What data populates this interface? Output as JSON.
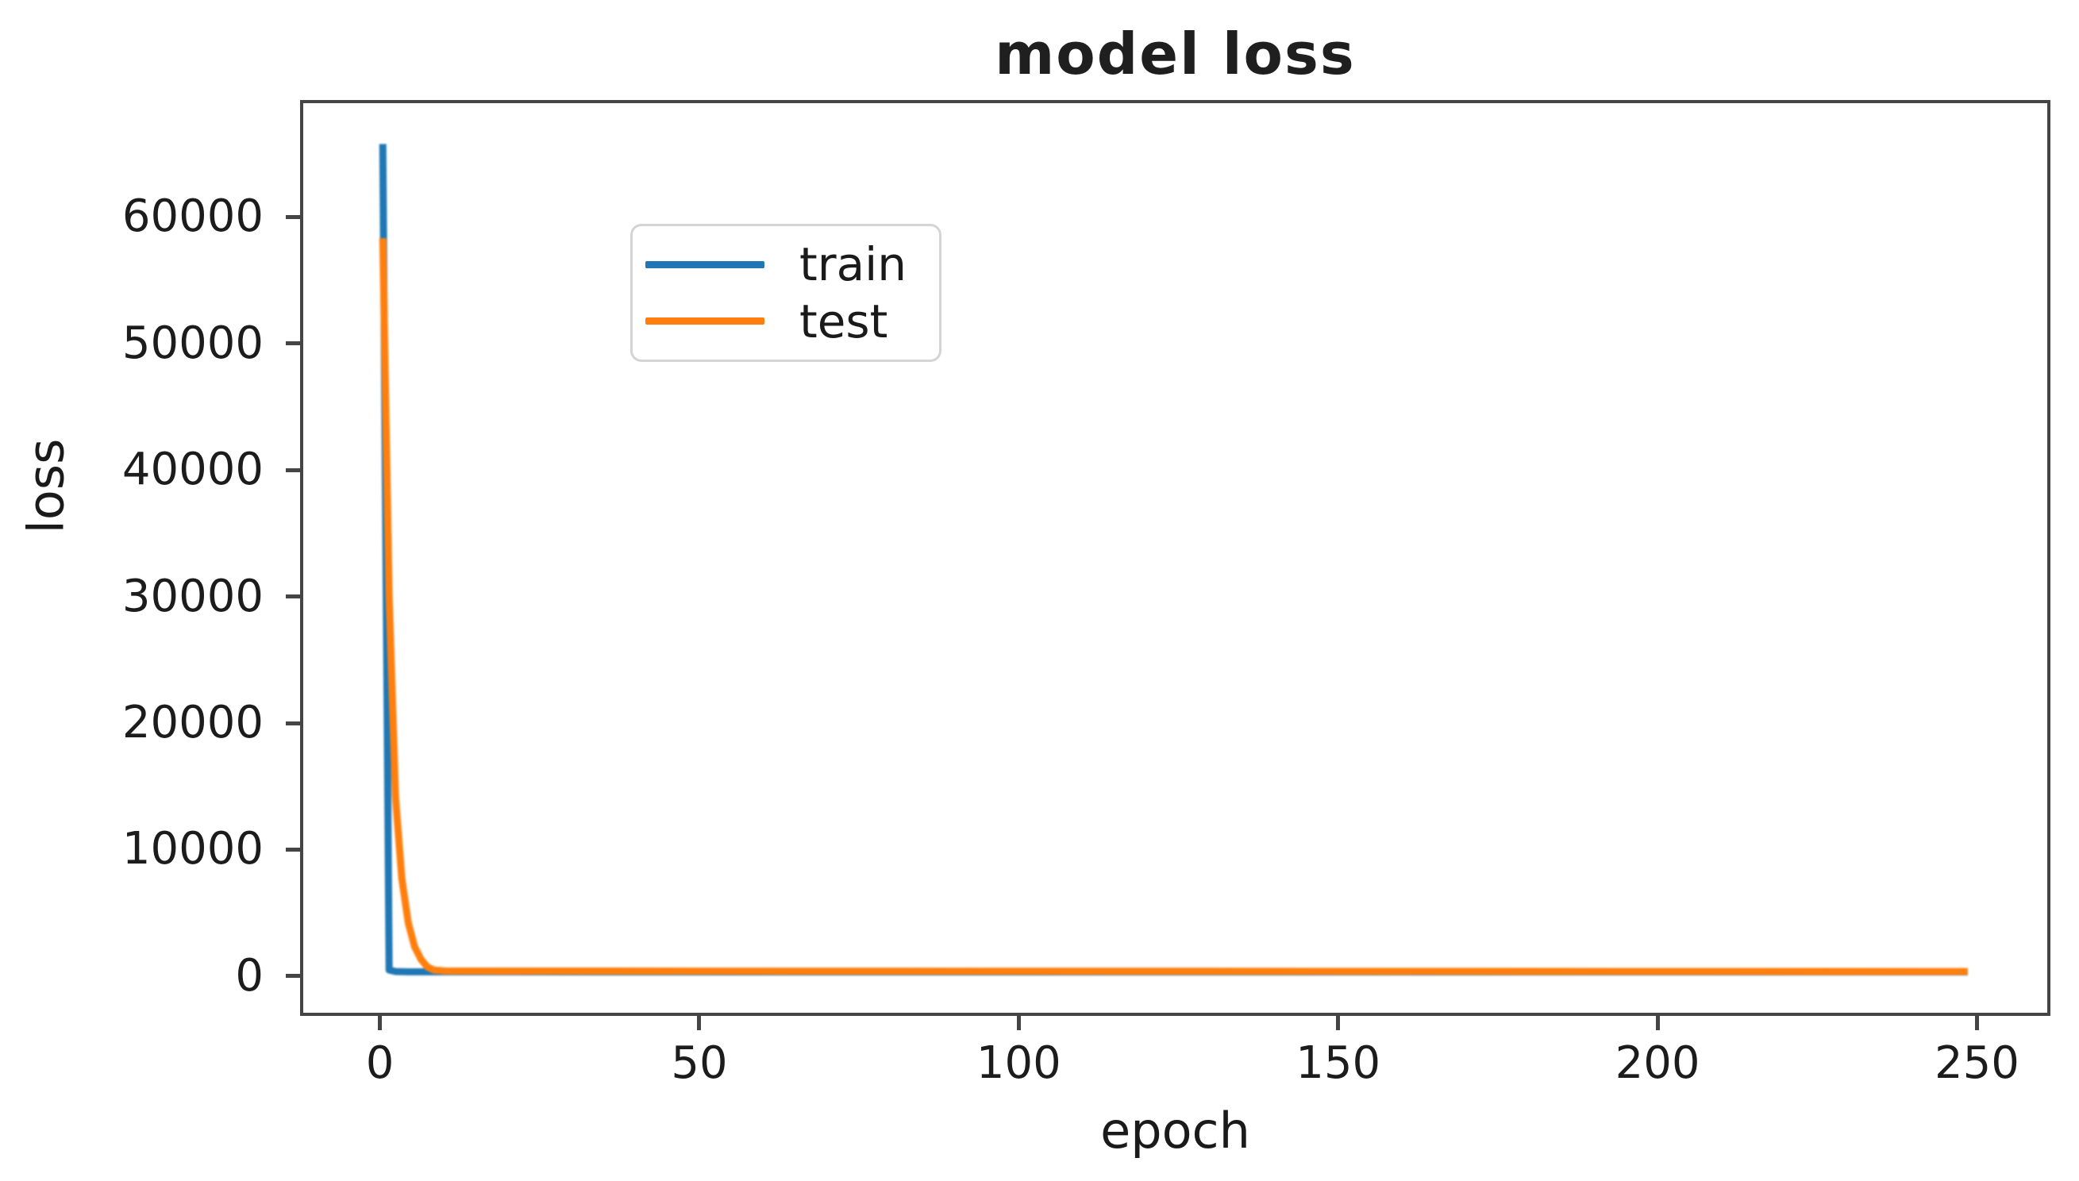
{
  "chart_data": {
    "type": "line",
    "title": "model loss",
    "xlabel": "epoch",
    "ylabel": "loss",
    "xlim": [
      -12.5,
      261.5
    ],
    "ylim": [
      -3150,
      69250
    ],
    "x_tick_labels": [
      "0",
      "50",
      "100",
      "150",
      "200",
      "250"
    ],
    "x_tick_values": [
      0,
      50,
      100,
      150,
      200,
      250
    ],
    "y_tick_labels": [
      "0",
      "10000",
      "20000",
      "30000",
      "40000",
      "50000",
      "60000"
    ],
    "y_tick_values": [
      0,
      10000,
      20000,
      30000,
      40000,
      50000,
      60000
    ],
    "grid": false,
    "legend": {
      "position": "upper left",
      "entries": [
        "train",
        "test"
      ]
    },
    "series": [
      {
        "name": "train",
        "color": "#1f77b4",
        "points": [
          [
            0,
            66000
          ],
          [
            1,
            250
          ],
          [
            2,
            130
          ],
          [
            4,
            105
          ],
          [
            249,
            100
          ]
        ]
      },
      {
        "name": "test",
        "color": "#ff7f0e",
        "points": [
          [
            0,
            58500
          ],
          [
            1,
            30000
          ],
          [
            2,
            14000
          ],
          [
            3,
            7500
          ],
          [
            4,
            4000
          ],
          [
            5,
            2100
          ],
          [
            6,
            1100
          ],
          [
            7,
            500
          ],
          [
            8,
            250
          ],
          [
            10,
            170
          ],
          [
            249,
            130
          ]
        ]
      }
    ],
    "colors": {
      "axis": "#454545",
      "text": "#1a1a1a",
      "legend_border": "#d4d4d4",
      "train": "#1f77b4",
      "test": "#ff7f0e"
    }
  }
}
